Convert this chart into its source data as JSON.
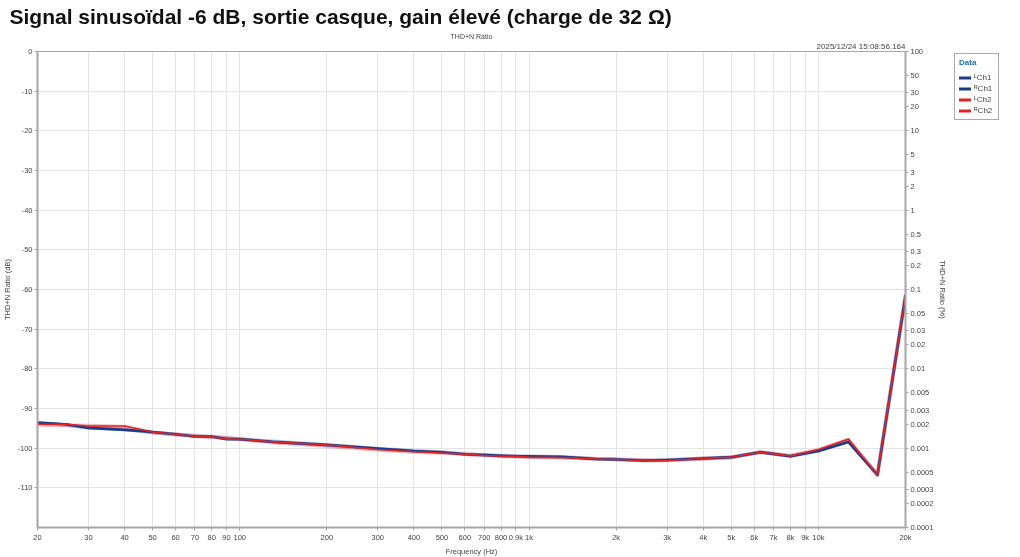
{
  "chart_data": {
    "type": "line",
    "title": "Signal sinusoïdal -6 dB, sortie casque, gain élevé (charge de 32 Ω)",
    "subtitle": "THD+N Ratio",
    "xlabel": "Frequency (Hz)",
    "ylabel": "THD+N Ratio (%)",
    "y2label": "THD+N Ratio (dB)",
    "legend_title": "Data",
    "annotations": [
      "2025/12/24 15:08:56.164"
    ],
    "log": "xy",
    "grid": true,
    "legend": "top right",
    "xlim": [
      20,
      20000
    ],
    "xticks": [
      20,
      30,
      40,
      50,
      60,
      70,
      80,
      90,
      100,
      200,
      300,
      400,
      500,
      600,
      700,
      800,
      {
        "value": 900,
        "label": "0.9k"
      },
      {
        "value": 1000,
        "label": "1k"
      },
      {
        "value": 2000,
        "label": "2k"
      },
      {
        "value": 3000,
        "label": "3k"
      },
      {
        "value": 4000,
        "label": "4k"
      },
      {
        "value": 5000,
        "label": "5k"
      },
      {
        "value": 6000,
        "label": "6k"
      },
      {
        "value": 7000,
        "label": "7k"
      },
      {
        "value": 8000,
        "label": "8k"
      },
      {
        "value": 9000,
        "label": "9k"
      },
      {
        "value": 10000,
        "label": "10k"
      },
      {
        "value": 20000,
        "label": "20k"
      }
    ],
    "ylim": [
      0.0001,
      100
    ],
    "yticks": [
      100,
      50,
      30,
      20,
      10,
      5,
      3,
      2,
      1,
      0.5,
      0.3,
      0.2,
      0.1,
      0.05,
      0.03,
      0.02,
      0.01,
      0.005,
      0.003,
      0.002,
      0.001,
      0.0005,
      0.0003,
      0.0002,
      0.0001
    ],
    "y2lim": [
      -120,
      0
    ],
    "y2ticks": [
      0,
      -10,
      -20,
      -30,
      -40,
      -50,
      -60,
      -70,
      -80,
      -90,
      -100,
      -110
    ],
    "x": [
      20,
      25,
      30,
      40,
      50,
      60,
      70,
      80,
      90,
      100,
      130,
      200,
      300,
      400,
      500,
      600,
      700,
      800,
      900,
      1000,
      1300,
      1700,
      2000,
      2500,
      3000,
      4000,
      5000,
      6300,
      8000,
      10000,
      12700,
      16000,
      20000
    ],
    "series": [
      {
        "name": "ᴸCh1",
        "color": "#1c3a8a",
        "axis": "y2",
        "values": [
          -93.7,
          -94.2,
          -94.9,
          -95.2,
          -96.1,
          -96.5,
          -96.9,
          -97.1,
          -97.4,
          -97.7,
          -98.3,
          -99.2,
          -100.1,
          -100.7,
          -101.0,
          -101.5,
          -101.7,
          -101.9,
          -102.0,
          -102.1,
          -102.2,
          -102.7,
          -102.8,
          -103.1,
          -103.0,
          -102.6,
          -102.3,
          -101.0,
          -102.0,
          -100.7,
          -98.3,
          -106.7,
          -61.6
        ]
      },
      {
        "name": "ᴿCh1",
        "color": "#1c3a8a",
        "values": [
          0.0021,
          0.002,
          0.0018,
          0.0017,
          0.0016,
          0.0015,
          0.0014,
          0.0014,
          0.0013,
          0.0013,
          0.0012,
          0.0011,
          0.00099,
          0.00092,
          0.00089,
          0.00084,
          0.00082,
          0.0008,
          0.00079,
          0.00079,
          0.00078,
          0.00073,
          0.00072,
          0.0007,
          0.00071,
          0.00074,
          0.00077,
          0.00089,
          0.00079,
          0.00092,
          0.0012,
          0.00046,
          0.083
        ]
      },
      {
        "name": "ᴸCh2",
        "color": "#d9262b",
        "axis": "y2",
        "values": [
          -94.1,
          -94.2,
          -94.3,
          -94.6,
          -96.0,
          -96.5,
          -96.9,
          -97.3,
          -97.5,
          -97.7,
          -98.6,
          -99.5,
          -100.4,
          -100.9,
          -101.2,
          -101.5,
          -101.8,
          -102.0,
          -102.1,
          -102.3,
          -102.4,
          -102.7,
          -102.8,
          -103.1,
          -103.1,
          -102.6,
          -102.3,
          -101.0,
          -101.9,
          -100.4,
          -97.9,
          -106.7,
          -61.6
        ]
      },
      {
        "name": "ᴿCh2",
        "color": "#d9262b",
        "values": [
          0.002,
          0.002,
          0.0019,
          0.0019,
          0.0016,
          0.0015,
          0.0014,
          0.0014,
          0.0013,
          0.0013,
          0.0012,
          0.0011,
          0.00096,
          0.0009,
          0.00087,
          0.00084,
          0.00081,
          0.00079,
          0.00079,
          0.00077,
          0.00076,
          0.00073,
          0.00072,
          0.0007,
          0.0007,
          0.00074,
          0.00077,
          0.00089,
          0.0008,
          0.00096,
          0.0013,
          0.00046,
          0.083
        ]
      }
    ]
  }
}
